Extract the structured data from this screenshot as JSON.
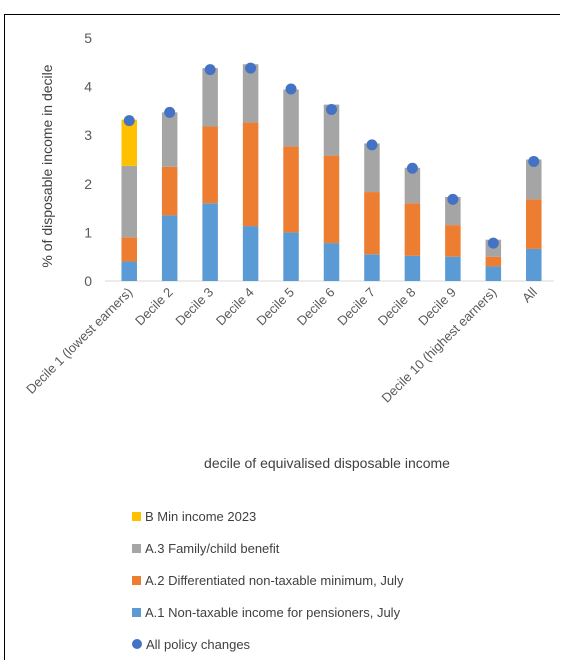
{
  "colors": {
    "b_min_income": "#FFC000",
    "a3_family": "#A5A5A5",
    "a2_nontaxable": "#ED7D31",
    "a1_pensioners": "#5B9BD5",
    "all_policy": "#4472C4",
    "gridline": "#D9D9D9",
    "text": "#595959"
  },
  "chart_data": {
    "type": "bar",
    "stacked": true,
    "ylabel": "% of disposable income in decile",
    "xlabel": "decile of equivalised disposable income",
    "ylim": [
      0,
      5
    ],
    "yticks": [
      "0",
      "1",
      "2",
      "3",
      "4",
      "5"
    ],
    "grid": false,
    "legend_position": "bottom",
    "categories": [
      "Decile 1 (lowest earners)",
      "Decile 2",
      "Decile 3",
      "Decile 4",
      "Decile 5",
      "Decile 6",
      "Decile 7",
      "Decile 8",
      "Decile 9",
      "Decile 10 (highest earners)",
      "All"
    ],
    "series": [
      {
        "name": "A.1 Non-taxable income for pensioners, July",
        "key": "a1_pensioners",
        "values": [
          0.4,
          1.35,
          1.6,
          1.13,
          1.0,
          0.78,
          0.55,
          0.52,
          0.5,
          0.3,
          0.66
        ]
      },
      {
        "name": "A.2 Differentiated non-taxable minimum, July",
        "key": "a2_nontaxable",
        "values": [
          0.5,
          1.0,
          1.58,
          2.13,
          1.77,
          1.8,
          1.28,
          1.08,
          0.65,
          0.2,
          1.02
        ]
      },
      {
        "name": "A.3 Family/child benefit",
        "key": "a3_family",
        "values": [
          1.47,
          1.12,
          1.2,
          1.2,
          1.17,
          1.05,
          1.0,
          0.73,
          0.58,
          0.35,
          0.82
        ]
      },
      {
        "name": "B Min income 2023",
        "key": "b_min_income",
        "values": [
          0.95,
          0,
          0,
          0,
          0,
          0,
          0,
          0,
          0,
          0,
          0
        ]
      }
    ],
    "markers": {
      "name": "All policy changes",
      "key": "all_policy",
      "values": [
        3.3,
        3.47,
        4.35,
        4.38,
        3.95,
        3.53,
        2.8,
        2.32,
        1.68,
        0.78,
        2.46
      ]
    },
    "legend": [
      {
        "label": "B Min income 2023",
        "key": "b_min_income",
        "shape": "square"
      },
      {
        "label": "A.3 Family/child benefit",
        "key": "a3_family",
        "shape": "square"
      },
      {
        "label": "A.2 Differentiated non-taxable minimum, July",
        "key": "a2_nontaxable",
        "shape": "square"
      },
      {
        "label": "A.1 Non-taxable income for pensioners, July",
        "key": "a1_pensioners",
        "shape": "square"
      },
      {
        "label": "All policy changes",
        "key": "all_policy",
        "shape": "circle"
      }
    ]
  }
}
